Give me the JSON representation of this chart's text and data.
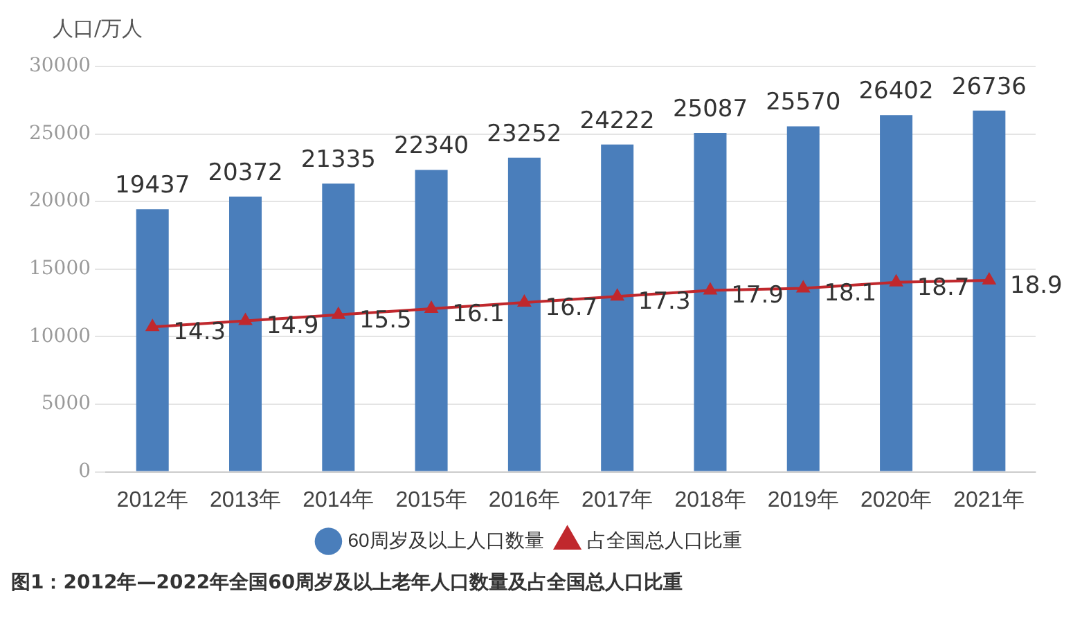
{
  "chart_data": {
    "type": "bar",
    "ylabel": "人口/万人",
    "categories": [
      "2012年",
      "2013年",
      "2014年",
      "2015年",
      "2016年",
      "2017年",
      "2018年",
      "2019年",
      "2020年",
      "2021年"
    ],
    "series": [
      {
        "name": "60周岁及以上人口数量",
        "color": "#4a7ebb",
        "values": [
          19437,
          20372,
          21335,
          22340,
          23252,
          24222,
          25087,
          25570,
          26402,
          26736
        ]
      },
      {
        "name": "占全国总人口比重",
        "type": "line",
        "axis": "y2",
        "color": "#c0282d",
        "marker": "triangle",
        "values": [
          14.3,
          14.9,
          15.5,
          16.1,
          16.7,
          17.3,
          17.9,
          18.1,
          18.7,
          18.9
        ]
      }
    ],
    "ylim": [
      0,
      30000
    ],
    "yticks": [
      0,
      5000,
      10000,
      15000,
      20000,
      25000,
      30000
    ],
    "y2lim": [
      0,
      40
    ],
    "grid": "y",
    "legend": "bottom",
    "data_labels": true,
    "annotations": [
      "图1：2012年—2022年全国60周岁及以上老年人口数量及占全国总人口比重"
    ]
  }
}
